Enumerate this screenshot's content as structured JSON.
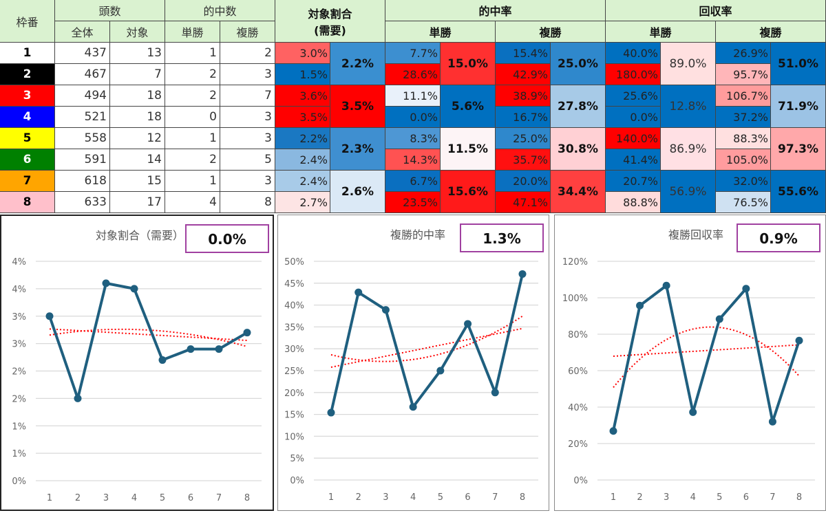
{
  "table": {
    "headers": {
      "waku": "枠番",
      "tousu": "頭数",
      "zentai": "全体",
      "taisho": "対象",
      "tekichusu": "的中数",
      "tansho": "単勝",
      "fukusho": "複勝",
      "taisho_wariai": "対象割合",
      "juyo": "(需要)",
      "tekichuritsu": "的中率",
      "kaishuritsu": "回収率"
    },
    "rows": [
      {
        "waku": "1",
        "frame_bg": "#ffffff",
        "frame_fg": "#000000",
        "zentai": "437",
        "taisho": "13",
        "tan": "1",
        "fuku": "2",
        "ratio": "3.0%",
        "ratio_bg": "#ff6262",
        "t_tan": "7.7%",
        "t_tan_bg": "#3d8fd0",
        "t_fuku": "15.4%",
        "t_fuku_bg": "#0a70c0",
        "k_tan": "40.0%",
        "k_tan_bg": "#0070c0",
        "k_fuku": "26.9%",
        "k_fuku_bg": "#0070c0"
      },
      {
        "waku": "2",
        "frame_bg": "#000000",
        "frame_fg": "#ffffff",
        "zentai": "467",
        "taisho": "7",
        "tan": "2",
        "fuku": "3",
        "ratio": "1.5%",
        "ratio_bg": "#0070c0",
        "t_tan": "28.6%",
        "t_tan_bg": "#ff0000",
        "t_fuku": "42.9%",
        "t_fuku_bg": "#ff0000",
        "k_tan": "180.0%",
        "k_tan_bg": "#ff0000",
        "k_fuku": "95.7%",
        "k_fuku_bg": "#ffb6b9"
      },
      {
        "waku": "3",
        "frame_bg": "#ff0000",
        "frame_fg": "#ffffff",
        "zentai": "494",
        "taisho": "18",
        "tan": "2",
        "fuku": "7",
        "ratio": "3.6%",
        "ratio_bg": "#ff0000",
        "t_tan": "11.1%",
        "t_tan_bg": "#e9f1fa",
        "t_fuku": "38.9%",
        "t_fuku_bg": "#ff0000",
        "k_tan": "25.6%",
        "k_tan_bg": "#0070c0",
        "k_fuku": "106.7%",
        "k_fuku_bg": "#ff9c9c"
      },
      {
        "waku": "4",
        "frame_bg": "#0000ff",
        "frame_fg": "#ffffff",
        "zentai": "521",
        "taisho": "18",
        "tan": "0",
        "fuku": "3",
        "ratio": "3.5%",
        "ratio_bg": "#ff0000",
        "t_tan": "0.0%",
        "t_tan_bg": "#0070c0",
        "t_fuku": "16.7%",
        "t_fuku_bg": "#0070c0",
        "k_tan": "0.0%",
        "k_tan_bg": "#0070c0",
        "k_fuku": "37.2%",
        "k_fuku_bg": "#0070c0"
      },
      {
        "waku": "5",
        "frame_bg": "#ffff00",
        "frame_fg": "#000000",
        "zentai": "558",
        "taisho": "12",
        "tan": "1",
        "fuku": "3",
        "ratio": "2.2%",
        "ratio_bg": "#1a78c2",
        "t_tan": "8.3%",
        "t_tan_bg": "#4e97d4",
        "t_fuku": "25.0%",
        "t_fuku_bg": "#2f88cc",
        "k_tan": "140.0%",
        "k_tan_bg": "#ff0000",
        "k_fuku": "88.3%",
        "k_fuku_bg": "#ffe0e0"
      },
      {
        "waku": "6",
        "frame_bg": "#008000",
        "frame_fg": "#ffffff",
        "zentai": "591",
        "taisho": "14",
        "tan": "2",
        "fuku": "5",
        "ratio": "2.4%",
        "ratio_bg": "#8ab8e0",
        "t_tan": "14.3%",
        "t_tan_bg": "#ff5252",
        "t_fuku": "35.7%",
        "t_fuku_bg": "#ff1010",
        "k_tan": "41.4%",
        "k_tan_bg": "#0070c0",
        "k_fuku": "105.0%",
        "k_fuku_bg": "#ff9c9e"
      },
      {
        "waku": "7",
        "frame_bg": "#ffa500",
        "frame_fg": "#000000",
        "zentai": "618",
        "taisho": "15",
        "tan": "1",
        "fuku": "3",
        "ratio": "2.4%",
        "ratio_bg": "#a8cbe8",
        "t_tan": "6.7%",
        "t_tan_bg": "#0a6fc0",
        "t_fuku": "20.0%",
        "t_fuku_bg": "#0a70c0",
        "k_tan": "20.7%",
        "k_tan_bg": "#0070c0",
        "k_fuku": "32.0%",
        "k_fuku_bg": "#0070c0"
      },
      {
        "waku": "8",
        "frame_bg": "#ffc0cb",
        "frame_fg": "#000000",
        "zentai": "633",
        "taisho": "17",
        "tan": "4",
        "fuku": "8",
        "ratio": "2.7%",
        "ratio_bg": "#fde4e4",
        "t_tan": "23.5%",
        "t_tan_bg": "#ff0000",
        "t_fuku": "47.1%",
        "t_fuku_bg": "#ff0000",
        "k_tan": "88.8%",
        "k_tan_bg": "#ffdcdc",
        "k_fuku": "76.5%",
        "k_fuku_bg": "#cfe1f2"
      }
    ],
    "groups": [
      {
        "ratio": "2.2%",
        "ratio_bg": "#3a8fd0",
        "t_tan": "15.0%",
        "t_tan_bg": "#ff3030",
        "t_fuku": "25.0%",
        "t_fuku_bg": "#2f88cc",
        "k_tan": "89.0%",
        "k_tan_bg": "#ffe0e0",
        "k_fuku": "51.0%",
        "k_fuku_bg": "#0070c0"
      },
      {
        "ratio": "3.5%",
        "ratio_bg": "#ff0000",
        "t_tan": "5.6%",
        "t_tan_bg": "#0070c0",
        "t_fuku": "27.8%",
        "t_fuku_bg": "#a7cae7",
        "k_tan": "12.8%",
        "k_tan_bg": "#0070c0",
        "k_fuku": "71.9%",
        "k_fuku_bg": "#9cc3e5"
      },
      {
        "ratio": "2.3%",
        "ratio_bg": "#3f8fd0",
        "t_tan": "11.5%",
        "t_tan_bg": "#fdf4f6",
        "t_fuku": "30.8%",
        "t_fuku_bg": "#ffd0d4",
        "k_tan": "86.9%",
        "k_tan_bg": "#ffe0e4",
        "k_fuku": "97.3%",
        "k_fuku_bg": "#ffa8aa"
      },
      {
        "ratio": "2.6%",
        "ratio_bg": "#dbe9f6",
        "t_tan": "15.6%",
        "t_tan_bg": "#ff1a1a",
        "t_fuku": "34.4%",
        "t_fuku_bg": "#ff4040",
        "k_tan": "56.9%",
        "k_tan_bg": "#0070c0",
        "k_fuku": "55.6%",
        "k_fuku_bg": "#0070c0"
      }
    ]
  },
  "chart_data": [
    {
      "type": "line",
      "title": "対象割合（需要）",
      "badge": "0.0%",
      "categories": [
        "1",
        "2",
        "3",
        "4",
        "5",
        "6",
        "7",
        "8"
      ],
      "values": [
        3.0,
        1.5,
        3.6,
        3.5,
        2.2,
        2.4,
        2.4,
        2.7
      ],
      "ylim": [
        0,
        4
      ],
      "y_ticks": [
        0,
        0.5,
        1,
        1.5,
        2,
        2.5,
        3,
        3.5,
        4
      ],
      "y_tick_labels": [
        "0%",
        "1%",
        "1%",
        "2%",
        "2%",
        "3%",
        "3%",
        "4%",
        "4%"
      ],
      "trendlines": [
        "linear",
        "polynomial"
      ],
      "grid": true,
      "line_color": "#1f5f7f",
      "trend_color": "#ff0000",
      "badge_border": "#a040a0"
    },
    {
      "type": "line",
      "title": "複勝的中率",
      "badge": "1.3%",
      "categories": [
        "1",
        "2",
        "3",
        "4",
        "5",
        "6",
        "7",
        "8"
      ],
      "values": [
        15.4,
        42.9,
        38.9,
        16.7,
        25.0,
        35.7,
        20.0,
        47.1
      ],
      "ylim": [
        0,
        50
      ],
      "y_ticks": [
        0,
        5,
        10,
        15,
        20,
        25,
        30,
        35,
        40,
        45,
        50
      ],
      "y_tick_labels": [
        "0%",
        "5%",
        "10%",
        "15%",
        "20%",
        "25%",
        "30%",
        "35%",
        "40%",
        "45%",
        "50%"
      ],
      "trendlines": [
        "linear",
        "polynomial"
      ],
      "grid": true,
      "line_color": "#1f5f7f",
      "trend_color": "#ff0000",
      "badge_border": "#a040a0"
    },
    {
      "type": "line",
      "title": "複勝回収率",
      "badge": "0.9%",
      "categories": [
        "1",
        "2",
        "3",
        "4",
        "5",
        "6",
        "7",
        "8"
      ],
      "values": [
        26.9,
        95.7,
        106.7,
        37.2,
        88.3,
        105.0,
        32.0,
        76.5
      ],
      "ylim": [
        0,
        120
      ],
      "y_ticks": [
        0,
        20,
        40,
        60,
        80,
        100,
        120
      ],
      "y_tick_labels": [
        "0%",
        "20%",
        "40%",
        "60%",
        "80%",
        "100%",
        "120%"
      ],
      "trendlines": [
        "linear",
        "polynomial"
      ],
      "grid": true,
      "line_color": "#1f5f7f",
      "trend_color": "#ff0000",
      "badge_border": "#a040a0"
    }
  ]
}
